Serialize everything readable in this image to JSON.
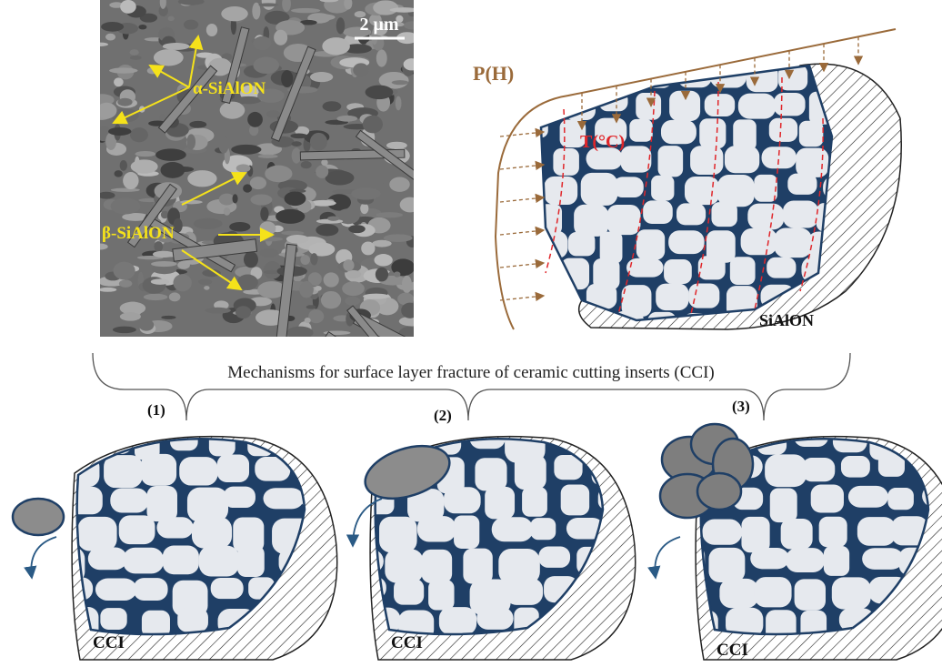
{
  "micrograph": {
    "scale_bar": "2 μm",
    "alpha_label": "α-SiAlON",
    "beta_label": "β-SiAlON"
  },
  "schematic": {
    "load": "P(H)",
    "temperature": "T(°C)",
    "material": "SiAlON"
  },
  "caption": "Mechanisms for surface layer fracture of ceramic cutting inserts (CCI)",
  "panels": [
    {
      "number": "(1)",
      "label": "CCI"
    },
    {
      "number": "(2)",
      "label": "CCI"
    },
    {
      "number": "(3)",
      "label": "CCI"
    }
  ]
}
